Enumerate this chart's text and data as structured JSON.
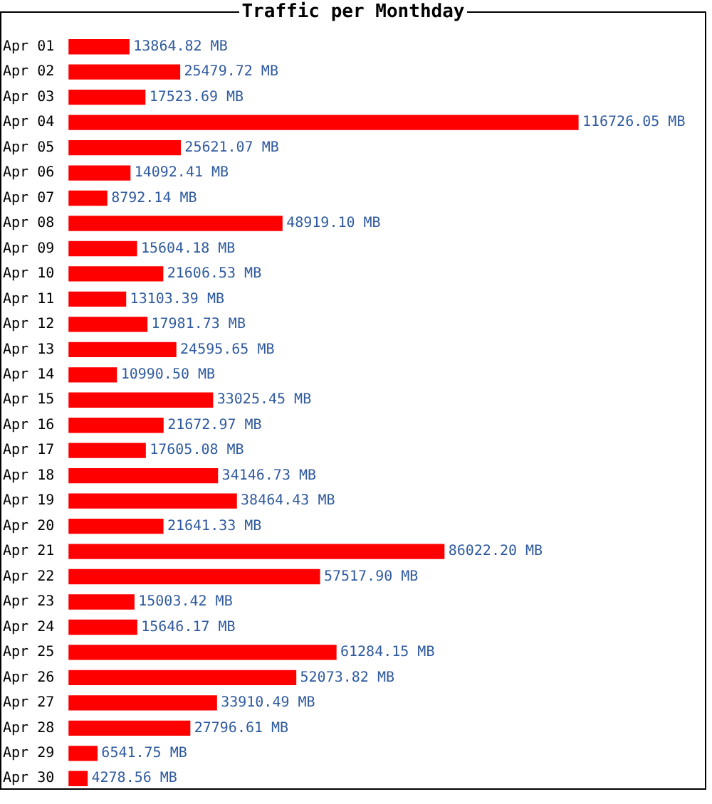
{
  "chart_data": {
    "type": "bar",
    "orientation": "horizontal",
    "title": "Traffic per Monthday",
    "color": "#ff0000",
    "categories": [
      "Apr 01",
      "Apr 02",
      "Apr 03",
      "Apr 04",
      "Apr 05",
      "Apr 06",
      "Apr 07",
      "Apr 08",
      "Apr 09",
      "Apr 10",
      "Apr 11",
      "Apr 12",
      "Apr 13",
      "Apr 14",
      "Apr 15",
      "Apr 16",
      "Apr 17",
      "Apr 18",
      "Apr 19",
      "Apr 20",
      "Apr 21",
      "Apr 22",
      "Apr 23",
      "Apr 24",
      "Apr 25",
      "Apr 26",
      "Apr 27",
      "Apr 28",
      "Apr 29",
      "Apr 30"
    ],
    "values": [
      13864.82,
      25479.72,
      17523.69,
      116726.05,
      25621.07,
      14092.41,
      8792.14,
      48919.1,
      15604.18,
      21606.53,
      13103.39,
      17981.73,
      24595.65,
      10990.5,
      33025.45,
      21672.97,
      17605.08,
      34146.73,
      38464.43,
      21641.33,
      86022.2,
      57517.9,
      15003.42,
      15646.17,
      61284.15,
      52073.82,
      33910.49,
      27796.61,
      6541.75,
      4278.56
    ],
    "value_labels": [
      "13864.82 MB",
      "25479.72 MB",
      "17523.69 MB",
      "116726.05 MB",
      "25621.07 MB",
      "14092.41 MB",
      "8792.14 MB",
      "48919.10 MB",
      "15604.18 MB",
      "21606.53 MB",
      "13103.39 MB",
      "17981.73 MB",
      "24595.65 MB",
      "10990.50 MB",
      "33025.45 MB",
      "21672.97 MB",
      "17605.08 MB",
      "34146.73 MB",
      "38464.43 MB",
      "21641.33 MB",
      "86022.20 MB",
      "57517.90 MB",
      "15003.42 MB",
      "15646.17 MB",
      "61284.15 MB",
      "52073.82 MB",
      "33910.49 MB",
      "27796.61 MB",
      "6541.75 MB",
      "4278.56 MB"
    ]
  }
}
